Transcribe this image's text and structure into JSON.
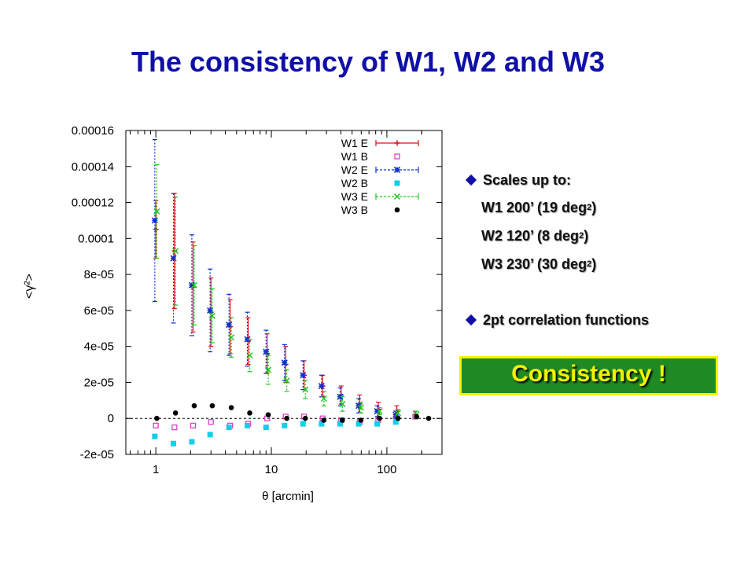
{
  "slide": {
    "title": "The consistency of W1, W2 and W3",
    "bullets": {
      "scales_header": "Scales up to:",
      "scale_lines": [
        {
          "text": "W1 200’  (19 deg",
          "sup": "2",
          "suffix": ")"
        },
        {
          "text": "W2 120’  (8 deg",
          "sup": "2",
          "suffix": ")"
        },
        {
          "text": "W3 230’  (30 deg",
          "sup": "2",
          "suffix": ")"
        }
      ],
      "second_header": "2pt correlation functions"
    },
    "consistency_label": "Consistency !",
    "colors": {
      "title": "#1010a8",
      "box_bg": "#1f8a23",
      "box_text": "#f2f200",
      "bullet": "#1010a8"
    }
  },
  "chart_data": {
    "type": "scatter",
    "title": "",
    "xlabel": "θ [arcmin]",
    "ylabel": "<γ²>",
    "x_scale": "log",
    "xlim": [
      0.55,
      300
    ],
    "ylim": [
      -2e-05,
      0.00016
    ],
    "x_ticks": [
      {
        "v": 1,
        "label": "1"
      },
      {
        "v": 10,
        "label": "10"
      },
      {
        "v": 100,
        "label": "100"
      }
    ],
    "y_ticks": [
      {
        "v": -2e-05,
        "label": "-2e-05"
      },
      {
        "v": 0,
        "label": "0"
      },
      {
        "v": 2e-05,
        "label": "2e-05"
      },
      {
        "v": 4e-05,
        "label": "4e-05"
      },
      {
        "v": 6e-05,
        "label": "6e-05"
      },
      {
        "v": 8e-05,
        "label": "8e-05"
      },
      {
        "v": 0.0001,
        "label": "0.0001"
      },
      {
        "v": 0.00012,
        "label": "0.00012"
      },
      {
        "v": 0.00014,
        "label": "0.00014"
      },
      {
        "v": 0.00016,
        "label": "0.00016"
      }
    ],
    "zero_line": true,
    "legend_position": "top-right",
    "series": [
      {
        "name": "W1 E",
        "color": "#e0101f",
        "marker": "plus",
        "line": "solid",
        "points": [
          {
            "x": 1.0,
            "y": 0.000105,
            "err": 1.6e-05
          },
          {
            "x": 1.45,
            "y": 9.3e-05,
            "err": 3.2e-05
          },
          {
            "x": 2.1,
            "y": 7.3e-05,
            "err": 2.5e-05
          },
          {
            "x": 3.0,
            "y": 5.9e-05,
            "err": 1.9e-05
          },
          {
            "x": 4.4,
            "y": 5.1e-05,
            "err": 1.5e-05
          },
          {
            "x": 6.3,
            "y": 4.3e-05,
            "err": 1.3e-05
          },
          {
            "x": 9.2,
            "y": 3.6e-05,
            "err": 1.1e-05
          },
          {
            "x": 13.3,
            "y": 3e-05,
            "err": 1e-05
          },
          {
            "x": 19.2,
            "y": 2.4e-05,
            "err": 8e-06
          },
          {
            "x": 27.8,
            "y": 1.8e-05,
            "err": 6e-06
          },
          {
            "x": 40.2,
            "y": 1.3e-05,
            "err": 5e-06
          },
          {
            "x": 58.2,
            "y": 8e-06,
            "err": 5e-06
          },
          {
            "x": 84.2,
            "y": 5e-06,
            "err": 4e-06
          },
          {
            "x": 121.8,
            "y": 4e-06,
            "err": 3e-06
          },
          {
            "x": 176,
            "y": 2e-06,
            "err": 2e-06
          }
        ]
      },
      {
        "name": "W1 B",
        "color": "#e040c8",
        "marker": "open-square",
        "line": "none",
        "points": [
          {
            "x": 1.0,
            "y": -4e-06
          },
          {
            "x": 1.45,
            "y": -5e-06
          },
          {
            "x": 2.1,
            "y": -4e-06
          },
          {
            "x": 3.0,
            "y": -2e-06
          },
          {
            "x": 4.4,
            "y": -4e-06
          },
          {
            "x": 6.3,
            "y": -3e-06
          },
          {
            "x": 9.2,
            "y": 0
          },
          {
            "x": 13.3,
            "y": 1e-06
          },
          {
            "x": 19.2,
            "y": 1e-06
          },
          {
            "x": 27.8,
            "y": 0
          },
          {
            "x": 40.2,
            "y": -1e-06
          },
          {
            "x": 58.2,
            "y": -2e-06
          },
          {
            "x": 84.2,
            "y": -1e-06
          },
          {
            "x": 121.8,
            "y": 0
          },
          {
            "x": 176,
            "y": 1e-06
          }
        ]
      },
      {
        "name": "W2 E",
        "color": "#1030d0",
        "marker": "star",
        "line": "dashed",
        "points": [
          {
            "x": 0.98,
            "y": 0.00011,
            "err": 4.5e-05
          },
          {
            "x": 1.42,
            "y": 8.9e-05,
            "err": 3.6e-05
          },
          {
            "x": 2.05,
            "y": 7.4e-05,
            "err": 2.8e-05
          },
          {
            "x": 2.95,
            "y": 6e-05,
            "err": 2.3e-05
          },
          {
            "x": 4.3,
            "y": 5.2e-05,
            "err": 1.7e-05
          },
          {
            "x": 6.2,
            "y": 4.4e-05,
            "err": 1.5e-05
          },
          {
            "x": 9.0,
            "y": 3.7e-05,
            "err": 1.2e-05
          },
          {
            "x": 13.0,
            "y": 3.1e-05,
            "err": 1e-05
          },
          {
            "x": 18.8,
            "y": 2.4e-05,
            "err": 8e-06
          },
          {
            "x": 27.2,
            "y": 1.8e-05,
            "err": 6e-06
          },
          {
            "x": 39.4,
            "y": 1.2e-05,
            "err": 5e-06
          },
          {
            "x": 57,
            "y": 7e-06,
            "err": 4e-06
          },
          {
            "x": 82.5,
            "y": 4e-06,
            "err": 3e-06
          },
          {
            "x": 119.3,
            "y": 2e-06,
            "err": 2e-06
          }
        ]
      },
      {
        "name": "W2 B",
        "color": "#10d0e8",
        "marker": "filled-square",
        "line": "none",
        "points": [
          {
            "x": 0.98,
            "y": -1e-05
          },
          {
            "x": 1.42,
            "y": -1.4e-05
          },
          {
            "x": 2.05,
            "y": -1.3e-05
          },
          {
            "x": 2.95,
            "y": -9e-06
          },
          {
            "x": 4.3,
            "y": -5e-06
          },
          {
            "x": 6.2,
            "y": -4e-06
          },
          {
            "x": 9.0,
            "y": -5e-06
          },
          {
            "x": 13.0,
            "y": -4e-06
          },
          {
            "x": 18.8,
            "y": -3e-06
          },
          {
            "x": 27.2,
            "y": -3e-06
          },
          {
            "x": 39.4,
            "y": -3e-06
          },
          {
            "x": 57,
            "y": -3e-06
          },
          {
            "x": 82.5,
            "y": -3e-06
          },
          {
            "x": 119.3,
            "y": -2e-06
          }
        ]
      },
      {
        "name": "W3 E",
        "color": "#20c820",
        "marker": "cross",
        "line": "dashed",
        "points": [
          {
            "x": 1.02,
            "y": 0.000115,
            "err": 2.6e-05
          },
          {
            "x": 1.48,
            "y": 9.3e-05,
            "err": 3e-05
          },
          {
            "x": 2.15,
            "y": 7.4e-05,
            "err": 2.2e-05
          },
          {
            "x": 3.08,
            "y": 5.7e-05,
            "err": 1.5e-05
          },
          {
            "x": 4.5,
            "y": 4.5e-05,
            "err": 1.1e-05
          },
          {
            "x": 6.5,
            "y": 3.5e-05,
            "err": 9e-06
          },
          {
            "x": 9.4,
            "y": 2.7e-05,
            "err": 8e-06
          },
          {
            "x": 13.6,
            "y": 2.1e-05,
            "err": 6e-06
          },
          {
            "x": 19.7,
            "y": 1.6e-05,
            "err": 5e-06
          },
          {
            "x": 28.5,
            "y": 1.1e-05,
            "err": 4e-06
          },
          {
            "x": 41.2,
            "y": 8e-06,
            "err": 4e-06
          },
          {
            "x": 59.6,
            "y": 6e-06,
            "err": 3e-06
          },
          {
            "x": 86.3,
            "y": 4e-06,
            "err": 2e-06
          },
          {
            "x": 124.8,
            "y": 3e-06,
            "err": 2e-06
          },
          {
            "x": 180.6,
            "y": 2e-06,
            "err": 2e-06
          }
        ]
      },
      {
        "name": "W3 B",
        "color": "#000000",
        "marker": "dot",
        "line": "none",
        "points": [
          {
            "x": 1.02,
            "y": 0
          },
          {
            "x": 1.48,
            "y": 3e-06
          },
          {
            "x": 2.15,
            "y": 7e-06
          },
          {
            "x": 3.08,
            "y": 7e-06
          },
          {
            "x": 4.5,
            "y": 6e-06
          },
          {
            "x": 6.5,
            "y": 3e-06
          },
          {
            "x": 9.4,
            "y": 2e-06
          },
          {
            "x": 13.6,
            "y": 0
          },
          {
            "x": 19.7,
            "y": 0
          },
          {
            "x": 28.5,
            "y": -1e-06
          },
          {
            "x": 41.2,
            "y": -1e-06
          },
          {
            "x": 59.6,
            "y": -1e-06
          },
          {
            "x": 86.3,
            "y": 0
          },
          {
            "x": 124.8,
            "y": 0
          },
          {
            "x": 180.6,
            "y": 1e-06
          },
          {
            "x": 230,
            "y": 0
          }
        ]
      }
    ]
  }
}
